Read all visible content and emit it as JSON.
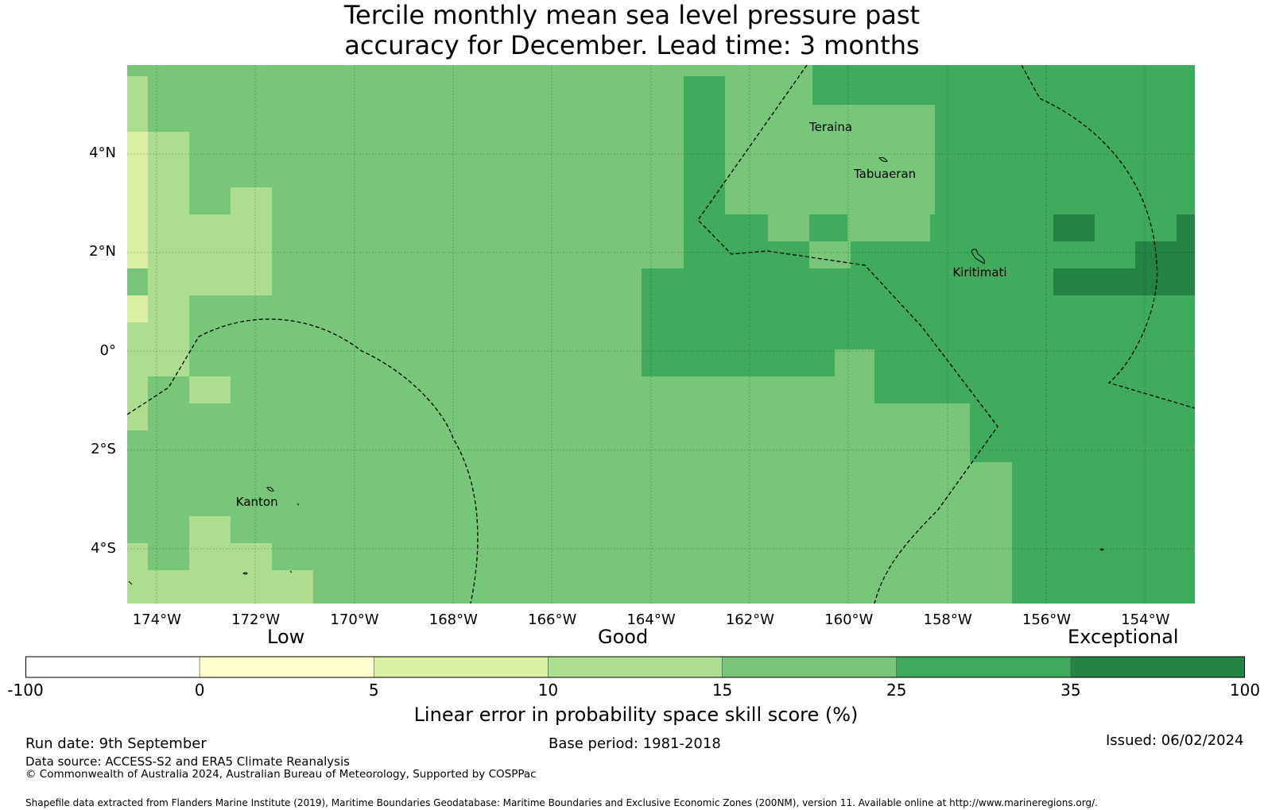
{
  "title": {
    "line1": "Tercile monthly mean sea level pressure past",
    "line2": "accuracy for December. Lead time: 3 months"
  },
  "map": {
    "extent": {
      "lon_min": -174.6,
      "lon_max": -153.0,
      "lat_min": -5.1,
      "lat_max": 5.8
    },
    "lon_ticks": [
      {
        "lon": -174,
        "label": "174°W"
      },
      {
        "lon": -172,
        "label": "172°W"
      },
      {
        "lon": -170,
        "label": "170°W"
      },
      {
        "lon": -168,
        "label": "168°W"
      },
      {
        "lon": -166,
        "label": "166°W"
      },
      {
        "lon": -164,
        "label": "164°W"
      },
      {
        "lon": -162,
        "label": "162°W"
      },
      {
        "lon": -160,
        "label": "160°W"
      },
      {
        "lon": -158,
        "label": "158°W"
      },
      {
        "lon": -156,
        "label": "156°W"
      },
      {
        "lon": -154,
        "label": "154°W"
      }
    ],
    "lat_ticks": [
      {
        "lat": 4,
        "label": "4°N"
      },
      {
        "lat": 2,
        "label": "2°N"
      },
      {
        "lat": 0,
        "label": "0°"
      },
      {
        "lat": -2,
        "label": "2°S"
      },
      {
        "lat": -4,
        "label": "4°S"
      }
    ],
    "places": [
      {
        "name": "Teraina",
        "lon": -160.8,
        "lat": 4.55
      },
      {
        "name": "Tabuaeran",
        "lon": -159.9,
        "lat": 3.6
      },
      {
        "name": "Kiritimati",
        "lon": -157.9,
        "lat": 1.6
      },
      {
        "name": "Kanton",
        "lon": -172.4,
        "lat": -3.05
      }
    ]
  },
  "colorbar": {
    "boundaries": [
      "-100",
      "0",
      "5",
      "10",
      "15",
      "25",
      "35",
      "100"
    ],
    "colors": [
      "#ffffff",
      "#ffffcc",
      "#d9f0a3",
      "#addd8e",
      "#78c679",
      "#41ab5d",
      "#238443"
    ],
    "categories": {
      "low": "Low",
      "good": "Good",
      "exceptional": "Exceptional"
    },
    "label": "Linear error in probability space skill score (%)"
  },
  "footer": {
    "run_date": "Run date: 9th September",
    "base_period": "Base period: 1981-2018",
    "issued": "Issued: 06/02/2024",
    "data_source": "Data source: ACCESS-S2 and ERA5 Climate Reanalysis",
    "copyright": "© Commonwealth of Australia 2024, Australian Bureau of Meteorology, Supported by COSPPac",
    "shapefile": "Shapefile data extracted from Flanders Marine Institute (2019), Maritime Boundaries Geodatabase: Maritime Boundaries and Exclusive Economic Zones (200NM), version 11. Available online at http://www.marineregions.org/."
  }
}
